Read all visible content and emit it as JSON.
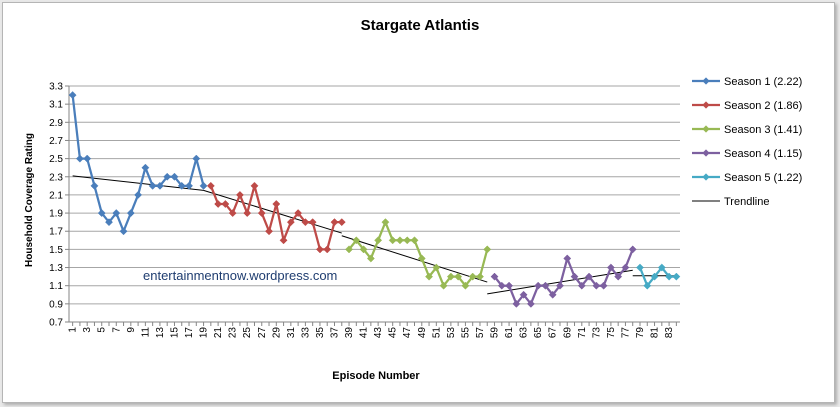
{
  "chart_data": {
    "type": "line",
    "title": "Stargate Atlantis",
    "xlabel": "Episode Number",
    "ylabel": "Household Coverage Rating",
    "watermark": "entertainmentnow.wordpress.com",
    "xlim": [
      1,
      84
    ],
    "ylim": [
      0.7,
      3.3
    ],
    "y_ticks": [
      0.7,
      0.9,
      1.1,
      1.3,
      1.5,
      1.7,
      1.9,
      2.1,
      2.3,
      2.5,
      2.7,
      2.9,
      3.1,
      3.3
    ],
    "x_ticks": [
      1,
      3,
      5,
      7,
      9,
      11,
      13,
      15,
      17,
      19,
      21,
      23,
      25,
      27,
      29,
      31,
      33,
      35,
      37,
      39,
      41,
      43,
      45,
      47,
      49,
      51,
      53,
      55,
      57,
      59,
      61,
      63,
      65,
      67,
      69,
      71,
      73,
      75,
      77,
      79,
      81,
      83
    ],
    "grid": "horizontal",
    "legend_position": "right",
    "series": [
      {
        "name": "Season 1 (2.22)",
        "color": "#4a7ebb",
        "x": [
          1,
          2,
          3,
          4,
          5,
          6,
          7,
          8,
          9,
          10,
          11,
          12,
          13,
          14,
          15,
          16,
          17,
          18,
          19
        ],
        "y": [
          3.2,
          2.5,
          2.5,
          2.2,
          1.9,
          1.8,
          1.9,
          1.7,
          1.9,
          2.1,
          2.4,
          2.2,
          2.2,
          2.3,
          2.3,
          2.2,
          2.2,
          2.5,
          2.2
        ]
      },
      {
        "name": "Season 2 (1.86)",
        "color": "#be4b48",
        "x": [
          20,
          21,
          22,
          23,
          24,
          25,
          26,
          27,
          28,
          29,
          30,
          31,
          32,
          33,
          34,
          35,
          36,
          37,
          38
        ],
        "y": [
          2.2,
          2.0,
          2.0,
          1.9,
          2.1,
          1.9,
          2.2,
          1.9,
          1.7,
          2.0,
          1.6,
          1.8,
          1.9,
          1.8,
          1.8,
          1.5,
          1.5,
          1.8,
          1.8
        ]
      },
      {
        "name": "Season 3 (1.41)",
        "color": "#98b954",
        "x": [
          39,
          40,
          41,
          42,
          43,
          44,
          45,
          46,
          47,
          48,
          49,
          50,
          51,
          52,
          53,
          54,
          55,
          56,
          57,
          58
        ],
        "y": [
          1.5,
          1.6,
          1.5,
          1.4,
          1.6,
          1.8,
          1.6,
          1.6,
          1.6,
          1.6,
          1.4,
          1.2,
          1.3,
          1.1,
          1.2,
          1.2,
          1.1,
          1.2,
          1.2,
          1.5
        ]
      },
      {
        "name": "Season 4 (1.15)",
        "color": "#7d60a0",
        "x": [
          59,
          60,
          61,
          62,
          63,
          64,
          65,
          66,
          67,
          68,
          69,
          70,
          71,
          72,
          73,
          74,
          75,
          76,
          77,
          78
        ],
        "y": [
          1.2,
          1.1,
          1.1,
          0.9,
          1.0,
          0.9,
          1.1,
          1.1,
          1.0,
          1.1,
          1.4,
          1.2,
          1.1,
          1.2,
          1.1,
          1.1,
          1.3,
          1.2,
          1.3,
          1.5
        ]
      },
      {
        "name": "Season 5 (1.22)",
        "color": "#46aac5",
        "x": [
          79,
          80,
          81,
          82,
          83,
          84
        ],
        "y": [
          1.3,
          1.1,
          1.2,
          1.3,
          1.2,
          1.2
        ]
      }
    ],
    "trendlines": [
      {
        "x": [
          1,
          19
        ],
        "y": [
          2.31,
          2.15
        ]
      },
      {
        "x": [
          19,
          38
        ],
        "y": [
          2.15,
          1.68
        ]
      },
      {
        "x": [
          38,
          58
        ],
        "y": [
          1.65,
          1.14
        ]
      },
      {
        "x": [
          58,
          78
        ],
        "y": [
          1.01,
          1.27
        ]
      },
      {
        "x": [
          78,
          84
        ],
        "y": [
          1.21,
          1.21
        ]
      }
    ],
    "legend": {
      "items": [
        {
          "label": "Season 1 (2.22)",
          "color": "#4a7ebb",
          "kind": "marker"
        },
        {
          "label": "Season 2 (1.86)",
          "color": "#be4b48",
          "kind": "marker"
        },
        {
          "label": "Season 3 (1.41)",
          "color": "#98b954",
          "kind": "marker"
        },
        {
          "label": "Season 4 (1.15)",
          "color": "#7d60a0",
          "kind": "marker"
        },
        {
          "label": "Season 5 (1.22)",
          "color": "#46aac5",
          "kind": "marker"
        },
        {
          "label": "Trendline",
          "color": "#000000",
          "kind": "line"
        }
      ]
    }
  }
}
